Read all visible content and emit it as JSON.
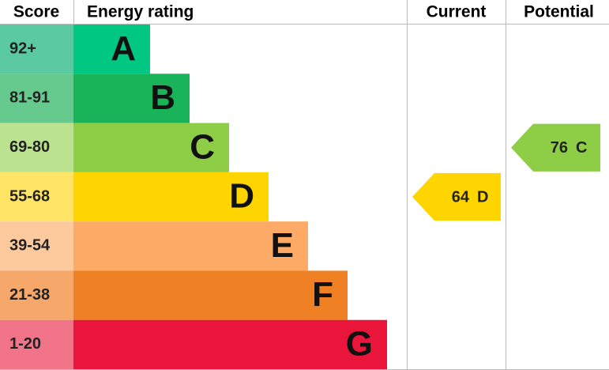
{
  "chart_data": {
    "type": "energy-rating",
    "headers": {
      "score": "Score",
      "rating": "Energy rating",
      "current": "Current",
      "potential": "Potential"
    },
    "bands": [
      {
        "score": "92+",
        "letter": "A",
        "color": "#00c781",
        "score_color": "#5ccaa1"
      },
      {
        "score": "81-91",
        "letter": "B",
        "color": "#19b459",
        "score_color": "#66c98d"
      },
      {
        "score": "69-80",
        "letter": "C",
        "color": "#8dce46",
        "score_color": "#bbe28e"
      },
      {
        "score": "55-68",
        "letter": "D",
        "color": "#ffd500",
        "score_color": "#ffe466"
      },
      {
        "score": "39-54",
        "letter": "E",
        "color": "#fcaa65",
        "score_color": "#fdca9e"
      },
      {
        "score": "21-38",
        "letter": "F",
        "color": "#ef8023",
        "score_color": "#f5a86a"
      },
      {
        "score": "1-20",
        "letter": "G",
        "color": "#e9153b",
        "score_color": "#f27489"
      }
    ],
    "current": {
      "value": 64,
      "letter": "D"
    },
    "potential": {
      "value": 76,
      "letter": "C"
    }
  }
}
